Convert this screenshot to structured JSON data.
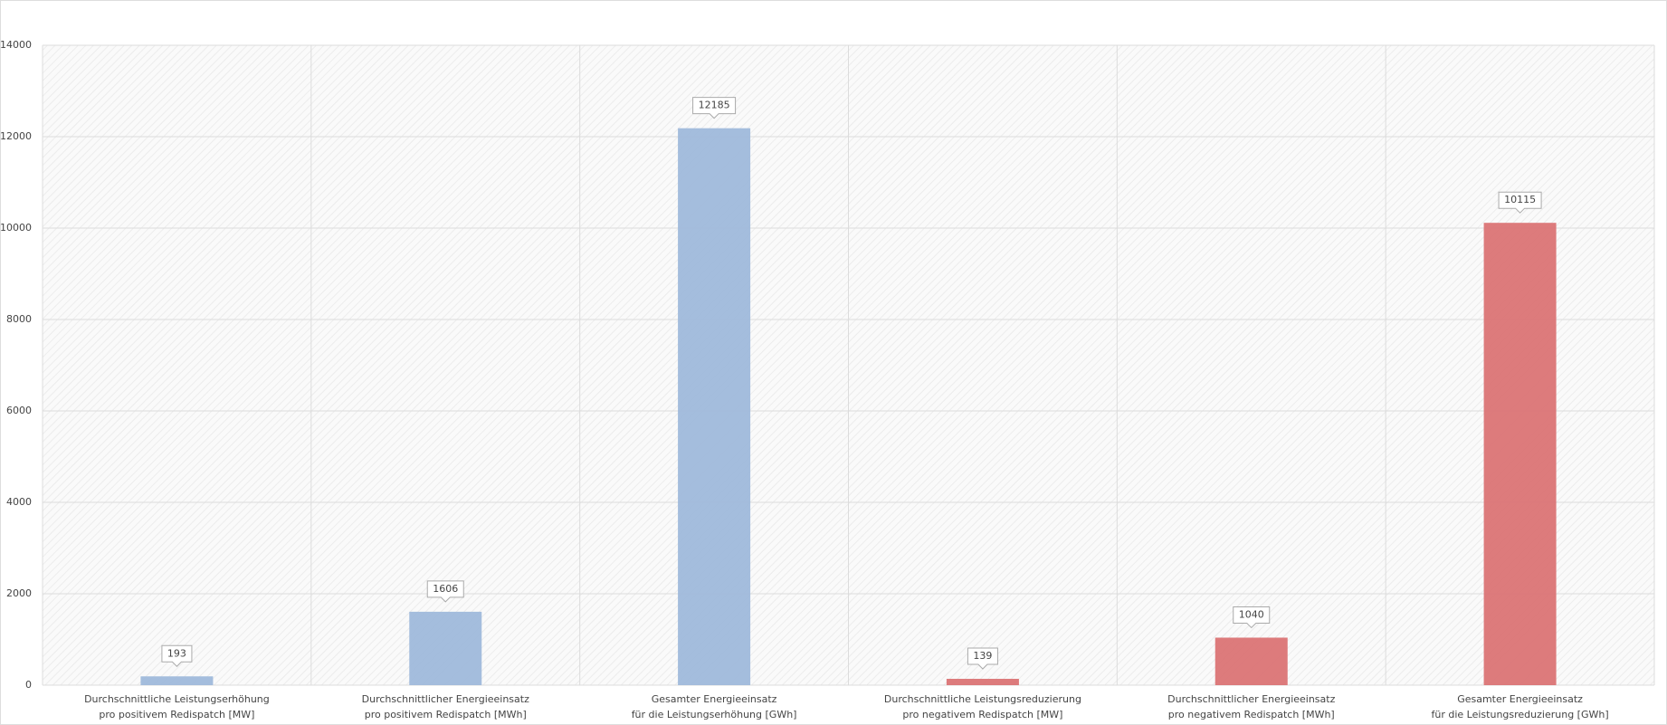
{
  "chart_data": {
    "type": "bar",
    "categories": [
      [
        "Durchschnittliche Leistungserhöhung",
        "pro positivem Redispatch [MW]"
      ],
      [
        "Durchschnittlicher Energieeinsatz",
        "pro positivem Redispatch [MWh]"
      ],
      [
        "Gesamter Energieeinsatz",
        "für die Leistungserhöhung [GWh]"
      ],
      [
        "Durchschnittliche Leistungsreduzierung",
        "pro negativem Redispatch [MW]"
      ],
      [
        "Durchschnittlicher Energieeinsatz",
        "pro negativem Redispatch [MWh]"
      ],
      [
        "Gesamter Energieeinsatz",
        "für die Leistungsreduzierung [GWh]"
      ]
    ],
    "values": [
      193,
      1606,
      12185,
      139,
      1040,
      10115
    ],
    "colors": [
      "#9fb9db",
      "#9fb9db",
      "#9fb9db",
      "#db7475",
      "#db7475",
      "#db7475"
    ],
    "ylim": [
      0,
      14000
    ],
    "yticks": [
      0,
      2000,
      4000,
      6000,
      8000,
      10000,
      12000,
      14000
    ],
    "grid": true
  }
}
